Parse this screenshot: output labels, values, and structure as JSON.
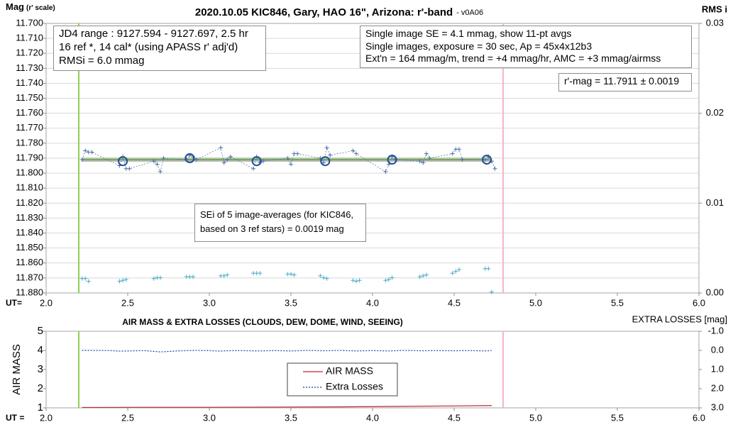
{
  "chart_data": [
    {
      "type": "line",
      "title": "2020.10.05 KIC846, Gary, HAO 16\", Arizona: r'-band",
      "subtitle": "- v0A06",
      "y_label": "Mag",
      "y_label_note": "(r' scale)",
      "y2_label": "RMS i",
      "x_label": "UT=",
      "xlim": [
        2.0,
        6.0
      ],
      "xticks": [
        {
          "value": 2.0,
          "label": "2.0"
        },
        {
          "value": 2.5,
          "label": "2.5"
        },
        {
          "value": 3.0,
          "label": "3.0"
        },
        {
          "value": 3.5,
          "label": "3.5"
        },
        {
          "value": 4.0,
          "label": "4.0"
        },
        {
          "value": 4.5,
          "label": "4.5"
        },
        {
          "value": 5.0,
          "label": "5.0"
        },
        {
          "value": 5.5,
          "label": "5.5"
        },
        {
          "value": 6.0,
          "label": "6.0"
        }
      ],
      "ylim": [
        11.7,
        11.88
      ],
      "y_inverted": true,
      "yticks": [
        {
          "value": 11.7,
          "label": "11.700"
        },
        {
          "value": 11.71,
          "label": "11.710"
        },
        {
          "value": 11.72,
          "label": "11.720"
        },
        {
          "value": 11.73,
          "label": "11.730"
        },
        {
          "value": 11.74,
          "label": "11.740"
        },
        {
          "value": 11.75,
          "label": "11.750"
        },
        {
          "value": 11.76,
          "label": "11.760"
        },
        {
          "value": 11.77,
          "label": "11.770"
        },
        {
          "value": 11.78,
          "label": "11.780"
        },
        {
          "value": 11.79,
          "label": "11.790"
        },
        {
          "value": 11.8,
          "label": "11.800"
        },
        {
          "value": 11.81,
          "label": "11.810"
        },
        {
          "value": 11.82,
          "label": "11.820"
        },
        {
          "value": 11.83,
          "label": "11.830"
        },
        {
          "value": 11.84,
          "label": "11.840"
        },
        {
          "value": 11.85,
          "label": "11.850"
        },
        {
          "value": 11.86,
          "label": "11.860"
        },
        {
          "value": 11.87,
          "label": "11.870"
        },
        {
          "value": 11.88,
          "label": "11.880"
        }
      ],
      "y2lim": [
        0,
        0.03
      ],
      "y2_inverted": false,
      "y2ticks": [
        {
          "value": 0,
          "label": "0.00"
        },
        {
          "value": 0.01,
          "label": "0.01"
        },
        {
          "value": 0.02,
          "label": "0.02"
        },
        {
          "value": 0.03,
          "label": "0.03"
        }
      ],
      "grid": true,
      "vlines": [
        {
          "x": 2.2,
          "color": "#92d050"
        },
        {
          "x": 4.8,
          "color": "#f4b6bf"
        }
      ],
      "series": [
        {
          "style": "band-line",
          "color": "#70ad47",
          "x": [
            2.22,
            4.72
          ],
          "values": [
            11.791,
            11.791
          ]
        },
        {
          "style": "cross-dashed",
          "color": "#4a6fa5",
          "x": [
            2.22,
            2.24,
            2.26,
            2.28,
            2.45,
            2.47,
            2.49,
            2.51,
            2.66,
            2.68,
            2.7,
            2.72,
            2.86,
            2.88,
            2.9,
            2.92,
            3.07,
            3.09,
            3.11,
            3.13,
            3.27,
            3.29,
            3.31,
            3.33,
            3.48,
            3.5,
            3.52,
            3.54,
            3.68,
            3.7,
            3.72,
            3.74,
            3.88,
            3.9,
            4.08,
            4.1,
            4.12,
            4.14,
            4.29,
            4.31,
            4.33,
            4.35,
            4.49,
            4.51,
            4.53,
            4.55,
            4.69,
            4.71,
            4.73,
            4.75
          ],
          "values": [
            11.791,
            11.785,
            11.786,
            11.786,
            11.795,
            11.789,
            11.797,
            11.797,
            11.792,
            11.794,
            11.799,
            11.79,
            11.791,
            11.788,
            11.789,
            11.791,
            11.783,
            11.793,
            11.791,
            11.789,
            11.797,
            11.789,
            11.793,
            11.792,
            11.79,
            11.794,
            11.787,
            11.787,
            11.79,
            11.793,
            11.783,
            11.788,
            11.785,
            11.787,
            11.799,
            11.794,
            11.789,
            11.791,
            11.792,
            11.793,
            11.787,
            11.79,
            11.787,
            11.784,
            11.784,
            11.791,
            11.791,
            11.789,
            11.792,
            11.797
          ]
        },
        {
          "style": "circle",
          "color": "#1f4e9c",
          "x": [
            2.47,
            2.88,
            3.29,
            3.71,
            4.12,
            4.7
          ],
          "values": [
            11.792,
            11.79,
            11.792,
            11.792,
            11.791,
            11.791
          ]
        },
        {
          "style": "cross",
          "color": "#4bacc6",
          "axis": "y2",
          "x": [
            2.22,
            2.24,
            2.26,
            2.45,
            2.47,
            2.49,
            2.66,
            2.68,
            2.7,
            2.86,
            2.88,
            2.9,
            3.07,
            3.09,
            3.11,
            3.27,
            3.29,
            3.31,
            3.48,
            3.5,
            3.52,
            3.68,
            3.7,
            3.72,
            3.88,
            3.9,
            3.92,
            4.08,
            4.1,
            4.12,
            4.29,
            4.31,
            4.33,
            4.49,
            4.51,
            4.53,
            4.69,
            4.71,
            4.73
          ],
          "values": [
            0.0016,
            0.0016,
            0.0013,
            0.0013,
            0.0014,
            0.0015,
            0.0016,
            0.0017,
            0.0017,
            0.0018,
            0.0018,
            0.0018,
            0.0019,
            0.0019,
            0.002,
            0.0022,
            0.0022,
            0.0022,
            0.0021,
            0.0021,
            0.002,
            0.0019,
            0.0017,
            0.0016,
            0.0014,
            0.0013,
            0.0014,
            0.0014,
            0.0015,
            0.0017,
            0.0018,
            0.0019,
            0.002,
            0.0022,
            0.0024,
            0.0026,
            0.0027,
            0.0027,
            0.0001
          ]
        }
      ],
      "annotations": [
        {
          "lines": [
            "JD4 range : 9127.594 - 9127.697,  2.5  hr",
            "16 ref *, 14 cal* (using APASS r' adj'd)",
            "RMSi = 6.0 mmag"
          ]
        },
        {
          "lines": [
            "Single image SE = 4.1 mmag, show  11-pt avgs",
            "Single images, exposure = 30 sec, Ap = 45x4x12b3",
            "Ext'n = 164 mmag/m, trend =  +4 mmag/hr, AMC = +3 mmag/airmss"
          ]
        },
        {
          "lines": [
            "r'-mag = 11.7911 ± 0.0019"
          ]
        },
        {
          "lines": [
            "SEi of 5 image-averages (for KIC846,",
            "based on 3 ref stars) = 0.0019 mag"
          ]
        }
      ]
    },
    {
      "type": "line",
      "title": "AIR MASS & EXTRA LOSSES (CLOUDS, DEW, DOME, WIND, SEEING)",
      "y_label": "AIR MASS",
      "y2_label": "EXTRA LOSSES [mag]",
      "x_label": "UT =",
      "xlim": [
        2.0,
        6.0
      ],
      "xticks": [
        {
          "value": 2.0,
          "label": "2.0"
        },
        {
          "value": 2.5,
          "label": "2.5"
        },
        {
          "value": 3.0,
          "label": "3.0"
        },
        {
          "value": 3.5,
          "label": "3.5"
        },
        {
          "value": 4.0,
          "label": "4.0"
        },
        {
          "value": 4.5,
          "label": "4.5"
        },
        {
          "value": 5.0,
          "label": "5.0"
        },
        {
          "value": 5.5,
          "label": "5.5"
        },
        {
          "value": 6.0,
          "label": "6.0"
        }
      ],
      "ylim": [
        1,
        5
      ],
      "y_inverted": false,
      "yticks": [
        1,
        2,
        3,
        4,
        5
      ],
      "y2lim": [
        -1,
        3
      ],
      "y2_inverted": true,
      "y2ticks": [
        {
          "value": -1,
          "label": "-1.0"
        },
        {
          "value": 0,
          "label": "0.0"
        },
        {
          "value": 1,
          "label": "1.0"
        },
        {
          "value": 2,
          "label": "2.0"
        },
        {
          "value": 3,
          "label": "3.0"
        }
      ],
      "grid": false,
      "legend": "center",
      "vlines": [
        {
          "x": 2.2,
          "color": "#92d050"
        },
        {
          "x": 4.8,
          "color": "#f4b6bf"
        }
      ],
      "series": [
        {
          "name": "AIR MASS",
          "style": "line",
          "color": "#c0262d",
          "x": [
            2.22,
            2.6,
            3.0,
            3.4,
            3.8,
            4.2,
            4.5,
            4.73
          ],
          "values": [
            1.02,
            1.03,
            1.03,
            1.04,
            1.05,
            1.08,
            1.1,
            1.12
          ]
        },
        {
          "name": "Extra Losses",
          "style": "dashed-line",
          "color": "#1f3fa5",
          "axis": "y2",
          "x": [
            2.22,
            2.3,
            2.4,
            2.45,
            2.5,
            2.6,
            2.66,
            2.7,
            2.8,
            2.9,
            3.0,
            3.07,
            3.1,
            3.2,
            3.3,
            3.4,
            3.5,
            3.6,
            3.7,
            3.8,
            3.9,
            4.0,
            4.1,
            4.2,
            4.3,
            4.4,
            4.5,
            4.6,
            4.7,
            4.73
          ],
          "values": [
            0.0,
            0.0,
            0.01,
            0.04,
            0.03,
            0.01,
            0.05,
            0.08,
            0.03,
            0.0,
            0.01,
            0.04,
            0.02,
            0.01,
            0.03,
            0.01,
            0.03,
            0.0,
            0.02,
            0.0,
            0.03,
            0.01,
            0.03,
            0.0,
            0.02,
            0.01,
            0.02,
            0.01,
            0.03,
            0.0
          ]
        }
      ]
    }
  ]
}
